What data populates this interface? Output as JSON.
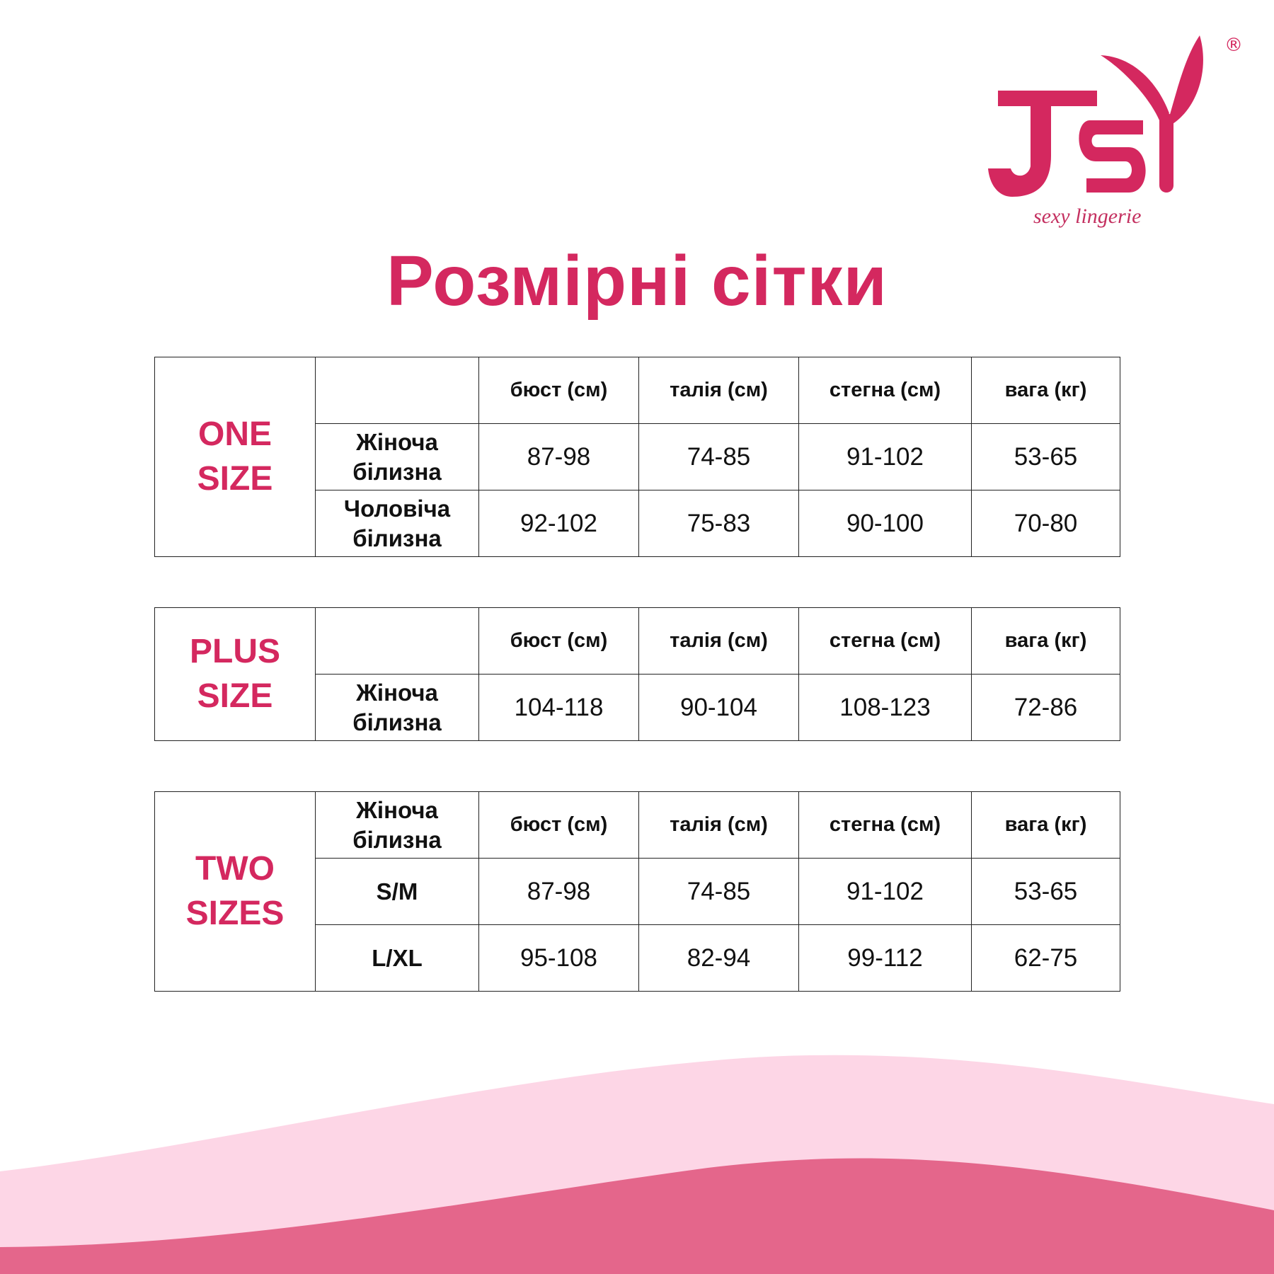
{
  "brand": {
    "logo_text": "JSY",
    "tagline": "sexy lingerie",
    "registered": "®",
    "color": "#d4285f"
  },
  "title": "Розмірні сітки",
  "columns": [
    "бюст (см)",
    "талія (см)",
    "стегна (см)",
    "вага (кг)"
  ],
  "tables": [
    {
      "size_label": [
        "ONE",
        "SIZE"
      ],
      "corner": "",
      "rows": [
        {
          "label": [
            "Жіноча",
            "білизна"
          ],
          "values": [
            "87-98",
            "74-85",
            "91-102",
            "53-65"
          ]
        },
        {
          "label": [
            "Чоловіча",
            "білизна"
          ],
          "values": [
            "92-102",
            "75-83",
            "90-100",
            "70-80"
          ]
        }
      ]
    },
    {
      "size_label": [
        "PLUS",
        "SIZE"
      ],
      "corner": "",
      "rows": [
        {
          "label": [
            "Жіноча",
            "білизна"
          ],
          "values": [
            "104-118",
            "90-104",
            "108-123",
            "72-86"
          ]
        }
      ]
    },
    {
      "size_label": [
        "TWO",
        "SIZES"
      ],
      "corner": [
        "Жіноча",
        "білизна"
      ],
      "rows": [
        {
          "label": [
            "S/M"
          ],
          "values": [
            "87-98",
            "74-85",
            "91-102",
            "53-65"
          ]
        },
        {
          "label": [
            "L/XL"
          ],
          "values": [
            "95-108",
            "82-94",
            "99-112",
            "62-75"
          ]
        }
      ]
    }
  ],
  "colors": {
    "accent": "#d4285f",
    "wave_light": "#fdd6e6",
    "wave_dark": "#e4668b"
  }
}
